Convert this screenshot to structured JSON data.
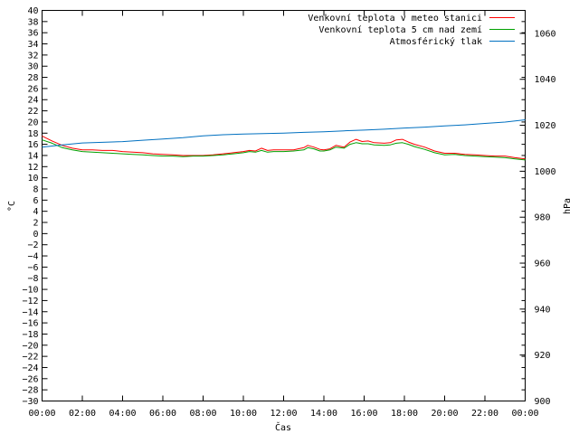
{
  "chart_data": {
    "type": "line",
    "xlabel": "Čas",
    "ylabel": "°C",
    "y2label": "hPa",
    "x_ticks": [
      "00:00",
      "02:00",
      "04:00",
      "06:00",
      "08:00",
      "10:00",
      "12:00",
      "14:00",
      "16:00",
      "18:00",
      "20:00",
      "22:00",
      "00:00"
    ],
    "x_range_hours": [
      0,
      24
    ],
    "ylim": [
      -30,
      40
    ],
    "y_ticks": [
      40,
      38,
      36,
      34,
      32,
      30,
      28,
      26,
      24,
      22,
      20,
      18,
      16,
      14,
      12,
      10,
      8,
      6,
      4,
      2,
      0,
      -2,
      -4,
      -6,
      -8,
      -10,
      -12,
      -14,
      -16,
      -18,
      -20,
      -22,
      -24,
      -26,
      -28,
      -30
    ],
    "y2lim": [
      900,
      1070
    ],
    "y2_ticks": [
      1060,
      1040,
      1020,
      1000,
      980,
      960,
      940,
      920,
      900
    ],
    "grid": false,
    "legend_position": "top-right",
    "series": [
      {
        "name": "Venkovní teplota v meteo stanici",
        "axis": "left",
        "color": "#ff0000",
        "x": [
          0,
          0.5,
          1,
          1.5,
          2,
          2.5,
          3,
          3.5,
          4,
          4.5,
          5,
          5.5,
          6,
          6.5,
          7,
          7.5,
          8,
          8.5,
          9,
          9.5,
          10,
          10.3,
          10.6,
          10.9,
          11.2,
          11.5,
          12,
          12.5,
          13,
          13.2,
          13.5,
          13.8,
          14,
          14.3,
          14.6,
          15,
          15.3,
          15.6,
          15.9,
          16.2,
          16.5,
          17,
          17.3,
          17.6,
          17.9,
          18.2,
          18.5,
          19,
          19.5,
          20,
          20.5,
          21,
          21.5,
          22,
          22.5,
          23,
          23.5,
          24
        ],
        "values": [
          17.5,
          16.6,
          15.8,
          15.3,
          15.0,
          15.0,
          14.9,
          14.9,
          14.7,
          14.6,
          14.5,
          14.3,
          14.2,
          14.1,
          14.0,
          14.0,
          14.0,
          14.1,
          14.3,
          14.5,
          14.7,
          14.9,
          14.8,
          15.3,
          14.9,
          15.0,
          15.0,
          15.0,
          15.4,
          15.8,
          15.5,
          15.1,
          15.0,
          15.2,
          15.8,
          15.5,
          16.4,
          16.9,
          16.5,
          16.6,
          16.3,
          16.2,
          16.3,
          16.8,
          16.9,
          16.4,
          16.0,
          15.5,
          14.8,
          14.4,
          14.4,
          14.2,
          14.1,
          14.0,
          13.9,
          13.9,
          13.6,
          13.4
        ]
      },
      {
        "name": "Venkovní teplota 5 cm nad zemí",
        "axis": "left",
        "color": "#00a000",
        "x": [
          0,
          0.5,
          1,
          1.5,
          2,
          2.5,
          3,
          3.5,
          4,
          4.5,
          5,
          5.5,
          6,
          6.5,
          7,
          7.5,
          8,
          8.5,
          9,
          9.5,
          10,
          10.3,
          10.6,
          10.9,
          11.2,
          11.5,
          12,
          12.5,
          13,
          13.2,
          13.5,
          13.8,
          14,
          14.3,
          14.6,
          15,
          15.3,
          15.6,
          15.9,
          16.2,
          16.5,
          17,
          17.3,
          17.6,
          17.9,
          18.2,
          18.5,
          19,
          19.5,
          20,
          20.5,
          21,
          21.5,
          22,
          22.5,
          23,
          23.5,
          24
        ],
        "values": [
          16.8,
          16.2,
          15.4,
          15.0,
          14.7,
          14.6,
          14.5,
          14.4,
          14.3,
          14.2,
          14.1,
          14.0,
          13.9,
          13.9,
          13.8,
          13.9,
          13.9,
          14.0,
          14.1,
          14.3,
          14.5,
          14.7,
          14.6,
          14.9,
          14.6,
          14.7,
          14.7,
          14.8,
          15.0,
          15.4,
          15.2,
          14.8,
          14.8,
          15.0,
          15.5,
          15.3,
          16.0,
          16.3,
          16.1,
          16.1,
          15.9,
          15.8,
          15.9,
          16.2,
          16.3,
          16.0,
          15.6,
          15.1,
          14.5,
          14.1,
          14.2,
          14.0,
          13.9,
          13.8,
          13.7,
          13.6,
          13.4,
          13.2
        ]
      },
      {
        "name": "Atmosférický tlak",
        "axis": "right",
        "color": "#0070c0",
        "x": [
          0,
          1,
          2,
          3,
          4,
          5,
          6,
          7,
          8,
          9,
          10,
          11,
          12,
          13,
          14,
          15,
          16,
          17,
          18,
          19,
          20,
          21,
          22,
          23,
          24
        ],
        "values": [
          1010.5,
          1011.5,
          1012.3,
          1012.6,
          1012.9,
          1013.5,
          1014.0,
          1014.6,
          1015.4,
          1015.9,
          1016.2,
          1016.4,
          1016.6,
          1016.9,
          1017.2,
          1017.6,
          1017.9,
          1018.3,
          1018.8,
          1019.2,
          1019.7,
          1020.2,
          1020.8,
          1021.4,
          1022.4
        ]
      }
    ]
  }
}
